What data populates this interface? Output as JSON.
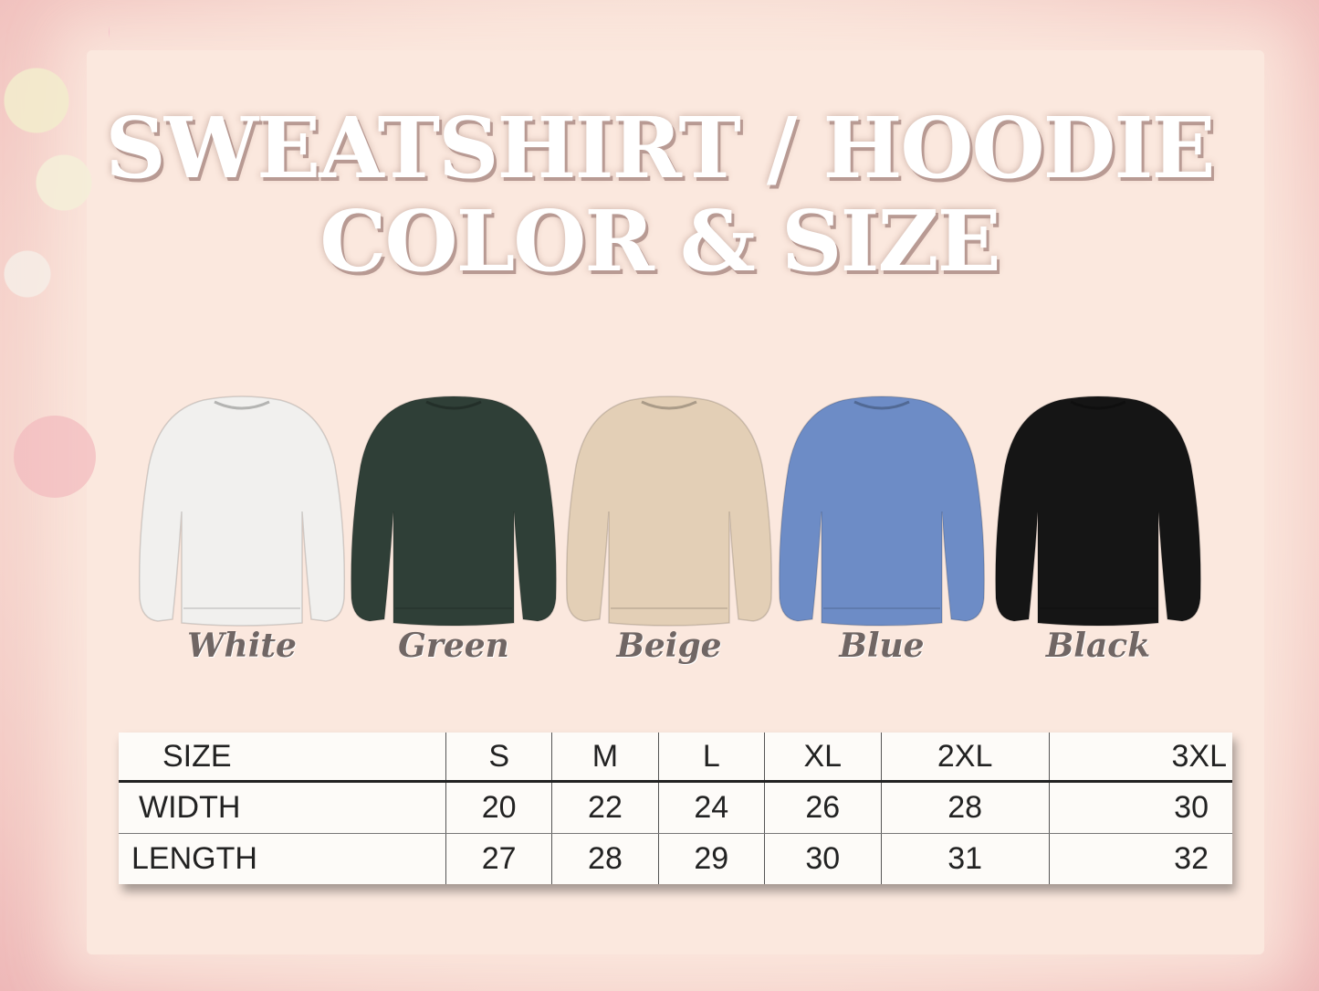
{
  "title": {
    "line1": "SWEATSHIRT / HOODIE",
    "line2": "COLOR & SIZE"
  },
  "colors": [
    {
      "label": "White",
      "hex": "#f1f0ee"
    },
    {
      "label": "Green",
      "hex": "#2f3f37"
    },
    {
      "label": "Beige",
      "hex": "#e3cfb6"
    },
    {
      "label": "Blue",
      "hex": "#6d8cc6"
    },
    {
      "label": "Black",
      "hex": "#151515"
    }
  ],
  "size_table": {
    "header": [
      "SIZE",
      "S",
      "M",
      "L",
      "XL",
      "2XL",
      "3XL"
    ],
    "rows": [
      [
        "WIDTH",
        "20",
        "22",
        "24",
        "26",
        "28",
        "30"
      ],
      [
        "LENGTH",
        "27",
        "28",
        "29",
        "30",
        "31",
        "32"
      ]
    ]
  }
}
